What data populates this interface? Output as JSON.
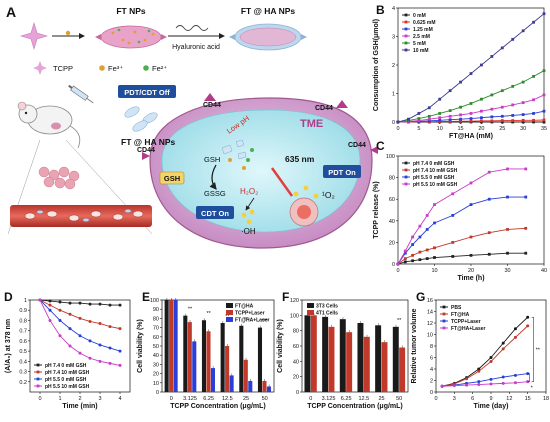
{
  "scheme": {
    "panel_letter": "A",
    "ft_nps": "FT NPs",
    "ft_ha_nps": "FT @ HA NPs",
    "hyaluronic_acid": "Hyaluronic acid",
    "legend_tcpp": "TCPP",
    "legend_fe3": "Fe³⁺",
    "legend_fe2": "Fe²⁺",
    "pdt_cdt_off": "PDT/CDT Off",
    "ft_ha_nps_2": "FT @ HA NPs",
    "cd44_a": "CD44",
    "cd44_b": "CD44",
    "cd44_c": "CD44",
    "cd44_d": "CD44",
    "tme": "TME",
    "low_ph": "Low pH",
    "nm635": "635 nm",
    "pdt_on": "PDT On",
    "cdt_on": "CDT On",
    "gsh_box": "GSH",
    "gsh": "GSH",
    "gssg": "GSSG",
    "h2o2": "H₂O₂",
    "singlet_o2": "¹O₂",
    "oh": "·OH"
  },
  "chart_data": [
    {
      "panel": "B",
      "type": "line",
      "xlabel": "FT@HA (mM)",
      "ylabel": "Consumption of GSH(μmol)",
      "xlim": [
        0,
        35
      ],
      "ylim": [
        0,
        4
      ],
      "xticks": [
        0,
        5,
        10,
        15,
        20,
        25,
        30,
        35
      ],
      "yticks": [
        0,
        1,
        2,
        3,
        4
      ],
      "x": [
        0,
        2.5,
        5,
        7.5,
        10,
        12.5,
        15,
        17.5,
        20,
        22.5,
        25,
        27.5,
        30,
        32.5,
        35
      ],
      "legend_position": "top-left",
      "series": [
        {
          "name": "0 mM",
          "color": "#222222",
          "values": [
            0,
            0,
            0,
            0,
            0,
            0,
            0,
            0,
            0,
            0,
            0,
            0,
            0,
            0,
            0
          ]
        },
        {
          "name": "0.625 mM",
          "color": "#e0302a",
          "values": [
            0,
            0,
            0.01,
            0.01,
            0.02,
            0.02,
            0.03,
            0.03,
            0.04,
            0.04,
            0.05,
            0.05,
            0.06,
            0.06,
            0.07
          ]
        },
        {
          "name": "1.25 mM",
          "color": "#2a3fd6",
          "values": [
            0,
            0.01,
            0.02,
            0.04,
            0.06,
            0.08,
            0.1,
            0.12,
            0.15,
            0.18,
            0.2,
            0.23,
            0.26,
            0.3,
            0.38
          ]
        },
        {
          "name": "2.5 mM",
          "color": "#c83cc8",
          "values": [
            0,
            0.02,
            0.05,
            0.1,
            0.15,
            0.2,
            0.25,
            0.3,
            0.38,
            0.45,
            0.52,
            0.6,
            0.68,
            0.78,
            0.95
          ]
        },
        {
          "name": "5 mM",
          "color": "#2e8b2e",
          "values": [
            0,
            0.05,
            0.12,
            0.2,
            0.3,
            0.4,
            0.52,
            0.65,
            0.8,
            0.95,
            1.1,
            1.25,
            1.4,
            1.6,
            1.8
          ]
        },
        {
          "name": "10 mM",
          "color": "#3b3b8f",
          "values": [
            0,
            0.1,
            0.3,
            0.5,
            0.8,
            1.1,
            1.4,
            1.7,
            2.0,
            2.3,
            2.6,
            2.9,
            3.2,
            3.5,
            3.8
          ]
        }
      ]
    },
    {
      "panel": "C",
      "type": "line",
      "xlabel": "Time (h)",
      "ylabel": "TCPP release (%)",
      "xlim": [
        0,
        40
      ],
      "ylim": [
        0,
        100
      ],
      "xticks": [
        0,
        10,
        20,
        30,
        40
      ],
      "yticks": [
        0,
        20,
        40,
        60,
        80,
        100
      ],
      "x": [
        0,
        2,
        4,
        6,
        8,
        10,
        15,
        20,
        25,
        30,
        35
      ],
      "legend_position": "top-left",
      "series": [
        {
          "name": "pH 7.4 0 mM GSH",
          "color": "#222222",
          "values": [
            0,
            2,
            3,
            4,
            5,
            6,
            7,
            8,
            9,
            10,
            10
          ]
        },
        {
          "name": "pH 7.4 10 mM GSH",
          "color": "#c0392b",
          "values": [
            0,
            5,
            8,
            11,
            13,
            15,
            20,
            25,
            29,
            32,
            33
          ]
        },
        {
          "name": "pH 5.5 0 mM GSH",
          "color": "#2a3fd6",
          "values": [
            0,
            10,
            18,
            25,
            32,
            38,
            45,
            55,
            60,
            62,
            62
          ]
        },
        {
          "name": "pH 5.5 10 mM GSH",
          "color": "#c83cc8",
          "values": [
            0,
            12,
            25,
            35,
            45,
            55,
            65,
            75,
            85,
            88,
            88
          ]
        }
      ]
    },
    {
      "panel": "D",
      "type": "line",
      "xlabel": "Time (min)",
      "ylabel": "(A/A₀) at 378 nm",
      "xlim": [
        -0.5,
        4.5
      ],
      "ylim": [
        0.1,
        1.0
      ],
      "xticks": [
        0,
        1,
        2,
        3,
        4
      ],
      "yticks": [
        0.2,
        0.3,
        0.4,
        0.5,
        0.6,
        0.7,
        0.8,
        0.9,
        1.0
      ],
      "x": [
        0,
        0.5,
        1,
        1.5,
        2,
        2.5,
        3,
        3.5,
        4
      ],
      "legend_position": "bottom-left",
      "series": [
        {
          "name": "pH 7.4 0 mM GSH",
          "color": "#222222",
          "values": [
            1.0,
            0.99,
            0.98,
            0.97,
            0.97,
            0.96,
            0.96,
            0.95,
            0.95
          ]
        },
        {
          "name": "pH 7.4 10 mM GSH",
          "color": "#c0392b",
          "values": [
            1.0,
            0.95,
            0.9,
            0.86,
            0.82,
            0.79,
            0.77,
            0.74,
            0.72
          ]
        },
        {
          "name": "pH 5.5 0 mM GSH",
          "color": "#2a3fd6",
          "values": [
            1.0,
            0.9,
            0.8,
            0.72,
            0.65,
            0.6,
            0.56,
            0.53,
            0.5
          ]
        },
        {
          "name": "pH 5.5 10 mM GSH",
          "color": "#c83cc8",
          "values": [
            1.0,
            0.8,
            0.65,
            0.55,
            0.48,
            0.43,
            0.4,
            0.38,
            0.36
          ]
        }
      ]
    },
    {
      "panel": "E",
      "type": "bar",
      "xlabel": "TCPP Concentration (μg/mL)",
      "ylabel": "Cell viability (%)",
      "ylim": [
        0,
        100
      ],
      "yticks": [
        0,
        10,
        20,
        30,
        40,
        50,
        60,
        70,
        80,
        90,
        100
      ],
      "categories": [
        "0",
        "3.125",
        "6.25",
        "12.5",
        "25",
        "50"
      ],
      "legend_position": "top-right",
      "significance": [
        "**",
        "**",
        "**",
        "**",
        "***"
      ],
      "series": [
        {
          "name": "FT@HA",
          "color": "#1a1a1a",
          "values": [
            100,
            83,
            78,
            75,
            72,
            70
          ]
        },
        {
          "name": "TCPP+Laser",
          "color": "#c0392b",
          "values": [
            100,
            76,
            66,
            50,
            35,
            12
          ]
        },
        {
          "name": "FT@HA+Laser",
          "color": "#2a3fd6",
          "values": [
            100,
            55,
            26,
            18,
            12,
            6
          ]
        }
      ]
    },
    {
      "panel": "F",
      "type": "bar",
      "xlabel": "TCPP Concentration (μg/mL)",
      "ylabel": "Cell viability (%)",
      "ylim": [
        0,
        120
      ],
      "yticks": [
        0,
        20,
        40,
        60,
        80,
        100,
        120
      ],
      "categories": [
        "0",
        "3.125",
        "6.25",
        "12.5",
        "25",
        "50"
      ],
      "legend_position": "top-left",
      "significance": [
        "**"
      ],
      "series": [
        {
          "name": "3T3 Cells",
          "color": "#1a1a1a",
          "values": [
            100,
            98,
            95,
            90,
            87,
            85
          ]
        },
        {
          "name": "4T1 Cells",
          "color": "#c0392b",
          "values": [
            100,
            85,
            78,
            72,
            65,
            58
          ]
        }
      ]
    },
    {
      "panel": "G",
      "type": "line",
      "xlabel": "Time (day)",
      "ylabel": "Relative tumor volume",
      "xlim": [
        0,
        18
      ],
      "ylim": [
        0,
        16
      ],
      "xticks": [
        0,
        3,
        6,
        9,
        12,
        15,
        18
      ],
      "yticks": [
        0,
        2,
        4,
        6,
        8,
        10,
        12,
        14,
        16
      ],
      "x": [
        1,
        3,
        5,
        7,
        9,
        11,
        13,
        15
      ],
      "legend_position": "top-left",
      "significance": [
        "**",
        "*"
      ],
      "series": [
        {
          "name": "PBS",
          "color": "#1a1a1a",
          "values": [
            1,
            1.5,
            2.5,
            4,
            6,
            8.5,
            11,
            13
          ]
        },
        {
          "name": "FT@HA",
          "color": "#c0392b",
          "values": [
            1,
            1.4,
            2.3,
            3.6,
            5.3,
            7.5,
            9.5,
            11.5
          ]
        },
        {
          "name": "TCPP+Laser",
          "color": "#2a3fd6",
          "values": [
            1,
            1.2,
            1.5,
            1.8,
            2.2,
            2.6,
            2.9,
            3.2
          ]
        },
        {
          "name": "FT@HA+Laser",
          "color": "#c83cc8",
          "values": [
            1,
            1.1,
            1.2,
            1.3,
            1.4,
            1.5,
            1.6,
            1.8
          ]
        }
      ]
    }
  ]
}
